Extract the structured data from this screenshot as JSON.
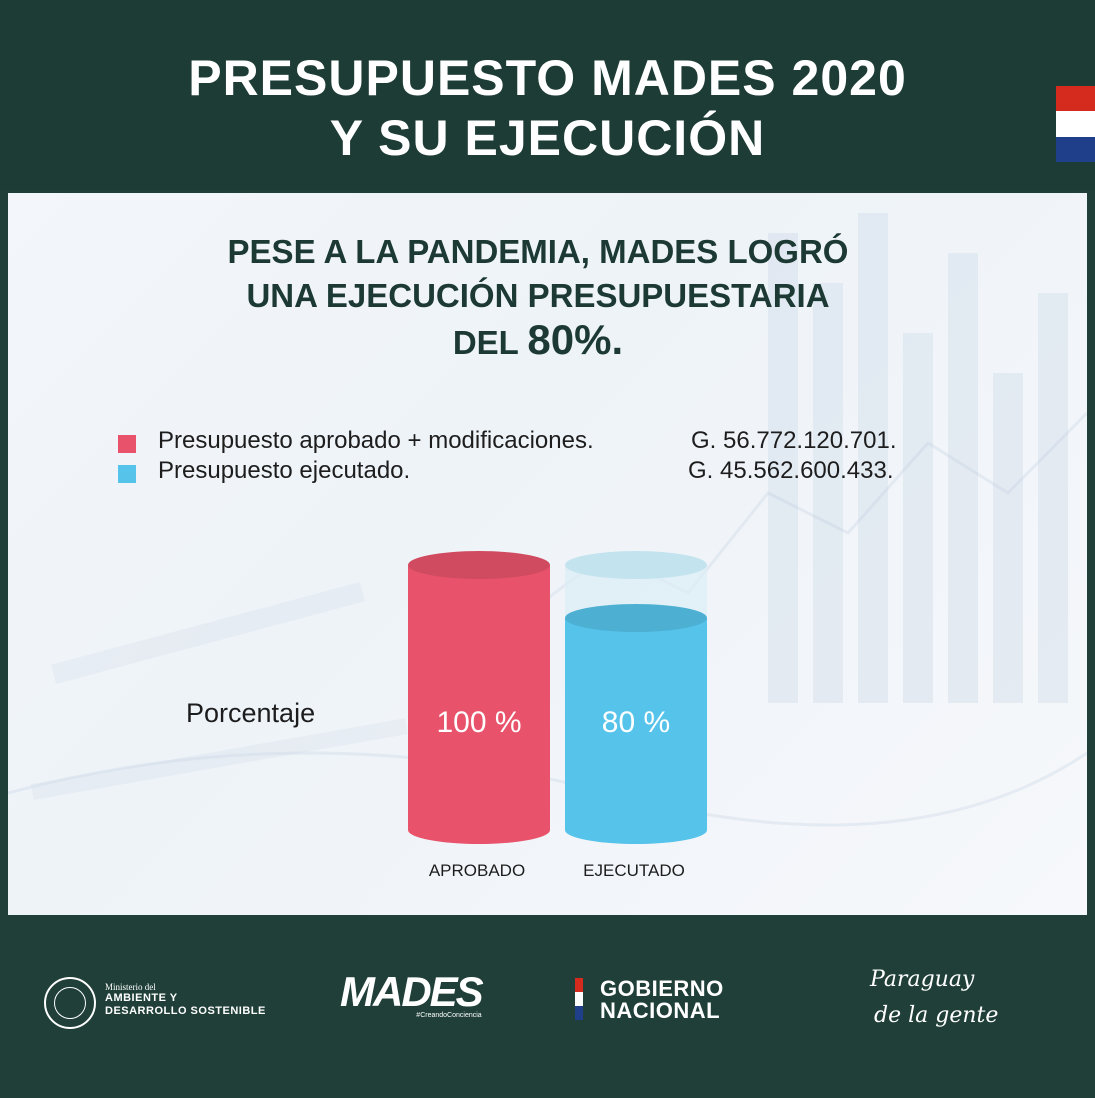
{
  "header": {
    "title_line1": "PRESUPUESTO MADES 2020",
    "title_line2": "Y SU EJECUCIÓN"
  },
  "headline": {
    "line1": "PESE A LA PANDEMIA, MADES LOGRÓ",
    "line2": "UNA EJECUCIÓN PRESUPUESTARIA",
    "line3_prefix": "DEL ",
    "line3_value": "80%."
  },
  "legend": [
    {
      "label": "Presupuesto aprobado + modificaciones.",
      "value": "G. 56.772.120.701.",
      "color": "#e8536b"
    },
    {
      "label": "Presupuesto ejecutado.",
      "value": "G. 45.562.600.433.",
      "color": "#55c3ea"
    }
  ],
  "chart_data": {
    "type": "bar",
    "categories": [
      "APROBADO",
      "EJECUTADO"
    ],
    "values": [
      100,
      80
    ],
    "data_labels": [
      "100 %",
      "80 %"
    ],
    "ylabel": "Porcentaje",
    "ylim": [
      0,
      100
    ],
    "colors": [
      "#e8536b",
      "#55c3ea"
    ],
    "empty_fill_color": "#dceef5",
    "grid": false
  },
  "footer": {
    "ministerio_small": "Ministerio del",
    "ministerio_line1": "AMBIENTE Y",
    "ministerio_line2": "DESARROLLO SOSTENIBLE",
    "mades_word": "MADES",
    "mades_tag": "#CreandoConciencia",
    "gobierno_line1": "GOBIERNO",
    "gobierno_line2": "NACIONAL",
    "slogan_line1": "Paraguay",
    "slogan_line2": "de la gente"
  },
  "colors": {
    "header_bg": "#1e3c36",
    "footer_bg": "#1f3f38",
    "title_text": "#ffffff",
    "headline_text": "#1c3a33"
  }
}
